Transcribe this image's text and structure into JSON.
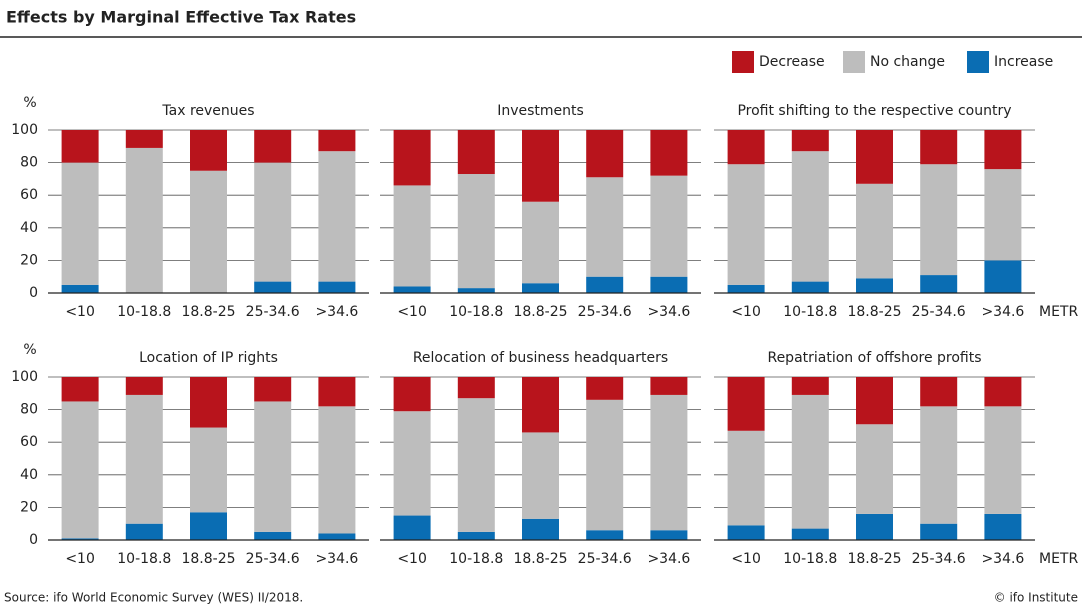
{
  "title": "Effects by Marginal Effective Tax Rates",
  "source": "Source: ifo World Economic Survey (WES) II/2018.",
  "credit": "© ifo Institute",
  "chart_data": [
    {
      "type": "bar",
      "stacked": true,
      "title": "Tax revenues",
      "ylabel": "%",
      "categories": [
        "<10",
        "10-18.8",
        "18.8-25",
        "25-34.6",
        ">34.6"
      ],
      "series": [
        {
          "name": "Increase",
          "color": "#0a6db3",
          "values": [
            5,
            0,
            0,
            7,
            7
          ]
        },
        {
          "name": "No change",
          "color": "#bdbdbd",
          "values": [
            75,
            89,
            75,
            73,
            80
          ]
        },
        {
          "name": "Decrease",
          "color": "#b8141c",
          "values": [
            20,
            11,
            25,
            20,
            13
          ]
        }
      ],
      "ylim": [
        0,
        100
      ],
      "yticks": [
        0,
        20,
        40,
        60,
        80,
        100
      ],
      "grid": true
    },
    {
      "type": "bar",
      "stacked": true,
      "title": "Investments",
      "categories": [
        "<10",
        "10-18.8",
        "18.8-25",
        "25-34.6",
        ">34.6"
      ],
      "series": [
        {
          "name": "Increase",
          "color": "#0a6db3",
          "values": [
            4,
            3,
            6,
            10,
            10
          ]
        },
        {
          "name": "No change",
          "color": "#bdbdbd",
          "values": [
            62,
            70,
            50,
            61,
            62
          ]
        },
        {
          "name": "Decrease",
          "color": "#b8141c",
          "values": [
            34,
            27,
            44,
            29,
            28
          ]
        }
      ],
      "ylim": [
        0,
        100
      ],
      "yticks": [
        0,
        20,
        40,
        60,
        80,
        100
      ],
      "grid": true
    },
    {
      "type": "bar",
      "stacked": true,
      "title": "Profit shifting to the respective country",
      "xlabel": "METR",
      "categories": [
        "<10",
        "10-18.8",
        "18.8-25",
        "25-34.6",
        ">34.6"
      ],
      "series": [
        {
          "name": "Increase",
          "color": "#0a6db3",
          "values": [
            5,
            7,
            9,
            11,
            20
          ]
        },
        {
          "name": "No change",
          "color": "#bdbdbd",
          "values": [
            74,
            80,
            58,
            68,
            56
          ]
        },
        {
          "name": "Decrease",
          "color": "#b8141c",
          "values": [
            21,
            13,
            33,
            21,
            24
          ]
        }
      ],
      "ylim": [
        0,
        100
      ],
      "yticks": [
        0,
        20,
        40,
        60,
        80,
        100
      ],
      "grid": true
    },
    {
      "type": "bar",
      "stacked": true,
      "title": "Location of IP rights",
      "ylabel": "%",
      "categories": [
        "<10",
        "10-18.8",
        "18.8-25",
        "25-34.6",
        ">34.6"
      ],
      "series": [
        {
          "name": "Increase",
          "color": "#0a6db3",
          "values": [
            1,
            10,
            17,
            5,
            4
          ]
        },
        {
          "name": "No change",
          "color": "#bdbdbd",
          "values": [
            84,
            79,
            52,
            80,
            78
          ]
        },
        {
          "name": "Decrease",
          "color": "#b8141c",
          "values": [
            15,
            11,
            31,
            15,
            18
          ]
        }
      ],
      "ylim": [
        0,
        100
      ],
      "yticks": [
        0,
        20,
        40,
        60,
        80,
        100
      ],
      "grid": true
    },
    {
      "type": "bar",
      "stacked": true,
      "title": "Relocation of business headquarters",
      "categories": [
        "<10",
        "10-18.8",
        "18.8-25",
        "25-34.6",
        ">34.6"
      ],
      "series": [
        {
          "name": "Increase",
          "color": "#0a6db3",
          "values": [
            15,
            5,
            13,
            6,
            6
          ]
        },
        {
          "name": "No change",
          "color": "#bdbdbd",
          "values": [
            64,
            82,
            53,
            80,
            83
          ]
        },
        {
          "name": "Decrease",
          "color": "#b8141c",
          "values": [
            21,
            13,
            34,
            14,
            11
          ]
        }
      ],
      "ylim": [
        0,
        100
      ],
      "yticks": [
        0,
        20,
        40,
        60,
        80,
        100
      ],
      "grid": true
    },
    {
      "type": "bar",
      "stacked": true,
      "title": "Repatriation of offshore profits",
      "xlabel": "METR",
      "categories": [
        "<10",
        "10-18.8",
        "18.8-25",
        "25-34.6",
        ">34.6"
      ],
      "series": [
        {
          "name": "Increase",
          "color": "#0a6db3",
          "values": [
            9,
            7,
            16,
            10,
            16
          ]
        },
        {
          "name": "No change",
          "color": "#bdbdbd",
          "values": [
            58,
            82,
            55,
            72,
            66
          ]
        },
        {
          "name": "Decrease",
          "color": "#b8141c",
          "values": [
            33,
            11,
            29,
            18,
            18
          ]
        }
      ],
      "ylim": [
        0,
        100
      ],
      "yticks": [
        0,
        20,
        40,
        60,
        80,
        100
      ],
      "grid": true
    }
  ]
}
